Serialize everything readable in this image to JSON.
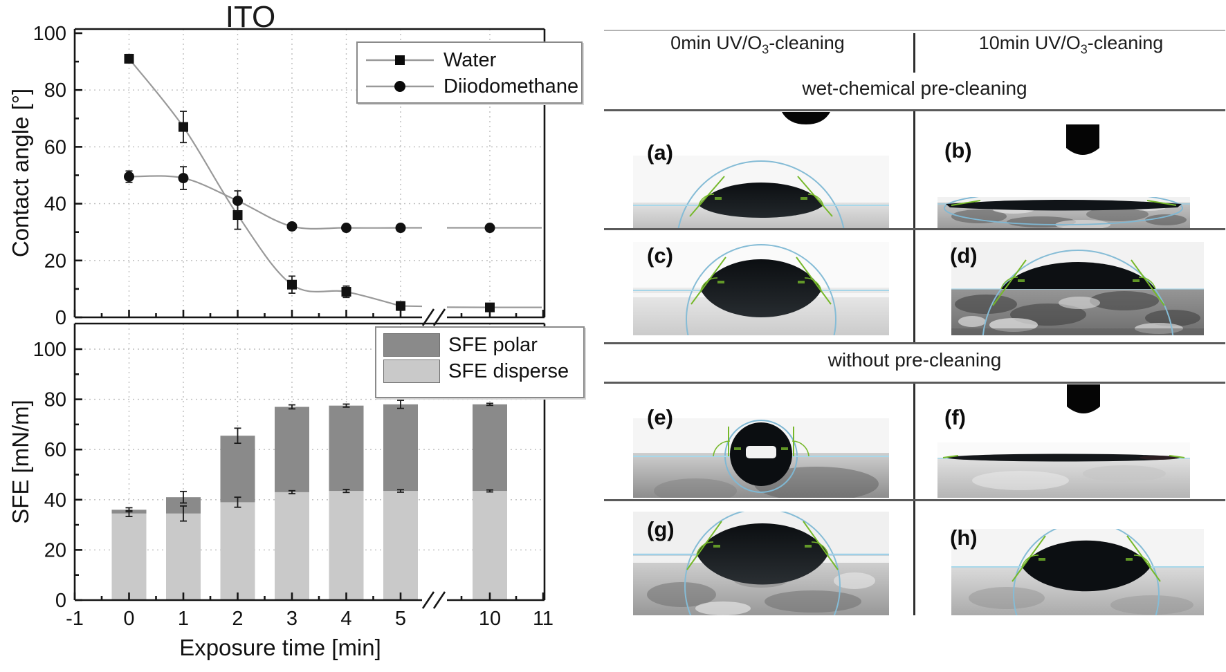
{
  "figure_title": "ITO",
  "chart_data": [
    {
      "type": "line",
      "title": "ITO",
      "ylabel": "Contact angle [°]",
      "xlabel": "Exposure time [min]",
      "ylim": [
        0,
        100
      ],
      "yticks": [
        0,
        20,
        40,
        60,
        80,
        100
      ],
      "xticks": [
        -1,
        0,
        1,
        2,
        3,
        4,
        5,
        10,
        11
      ],
      "axis_break_between": [
        5,
        10
      ],
      "grid": true,
      "legend_position": "top-right",
      "x": [
        0,
        1,
        2,
        3,
        4,
        5,
        10
      ],
      "series": [
        {
          "name": "Water",
          "marker": "square",
          "color": "#111111",
          "values": [
            91,
            67,
            36,
            11.5,
            9,
            4,
            3.5
          ],
          "errors": [
            1.5,
            5.5,
            5,
            3,
            2,
            1.5,
            0.8
          ]
        },
        {
          "name": "Diiodomethane",
          "marker": "circle",
          "color": "#111111",
          "values": [
            49.5,
            49,
            41,
            32,
            31.5,
            31.5,
            31.5
          ],
          "errors": [
            2,
            4,
            3.5,
            1.2,
            0.8,
            0.8,
            0.8
          ]
        }
      ]
    },
    {
      "type": "bar",
      "stacked": true,
      "title": "",
      "ylabel": "SFE [mN/m]",
      "xlabel": "Exposure time [min]",
      "ylim": [
        0,
        110
      ],
      "yticks": [
        0,
        20,
        40,
        60,
        80,
        100
      ],
      "xticks": [
        -1,
        0,
        1,
        2,
        3,
        4,
        5,
        10,
        11
      ],
      "axis_break_between": [
        5,
        10
      ],
      "grid": true,
      "legend_position": "top-right",
      "x": [
        0,
        1,
        2,
        3,
        4,
        5,
        10
      ],
      "series": [
        {
          "name": "SFE disperse",
          "color": "#c9c9c9",
          "values": [
            34.5,
            34.5,
            39,
            43,
            43.5,
            43.5,
            43.5
          ],
          "errors": [
            1.2,
            3,
            2,
            0.6,
            0.6,
            0.5,
            0.4
          ]
        },
        {
          "name": "SFE polar",
          "color": "#8a8a8a",
          "values": [
            1.5,
            6.5,
            26.5,
            34,
            34,
            34.5,
            34.5
          ],
          "errors": [
            0.8,
            2.3,
            3,
            0.8,
            0.6,
            1.6,
            0.4
          ]
        }
      ]
    }
  ],
  "right_panel": {
    "col1": {
      "pre": "0min UV/O",
      "sub": "3",
      "post": "-cleaning"
    },
    "col2": {
      "pre": "10min UV/O",
      "sub": "3",
      "post": "-cleaning"
    },
    "section1": "wet-chemical pre-cleaning",
    "section2": "without pre-cleaning",
    "panels": [
      "(a)",
      "(b)",
      "(c)",
      "(d)",
      "(e)",
      "(f)",
      "(g)",
      "(h)"
    ]
  },
  "colors": {
    "sfe_polar": "#8a8a8a",
    "sfe_disperse": "#c9c9c9",
    "curve": "#999999",
    "gridline": "#bdbdbd",
    "tangent_green": "#76b82a",
    "fit_blue": "#85bcd6",
    "baseline_blue": "#a8d8ea"
  }
}
